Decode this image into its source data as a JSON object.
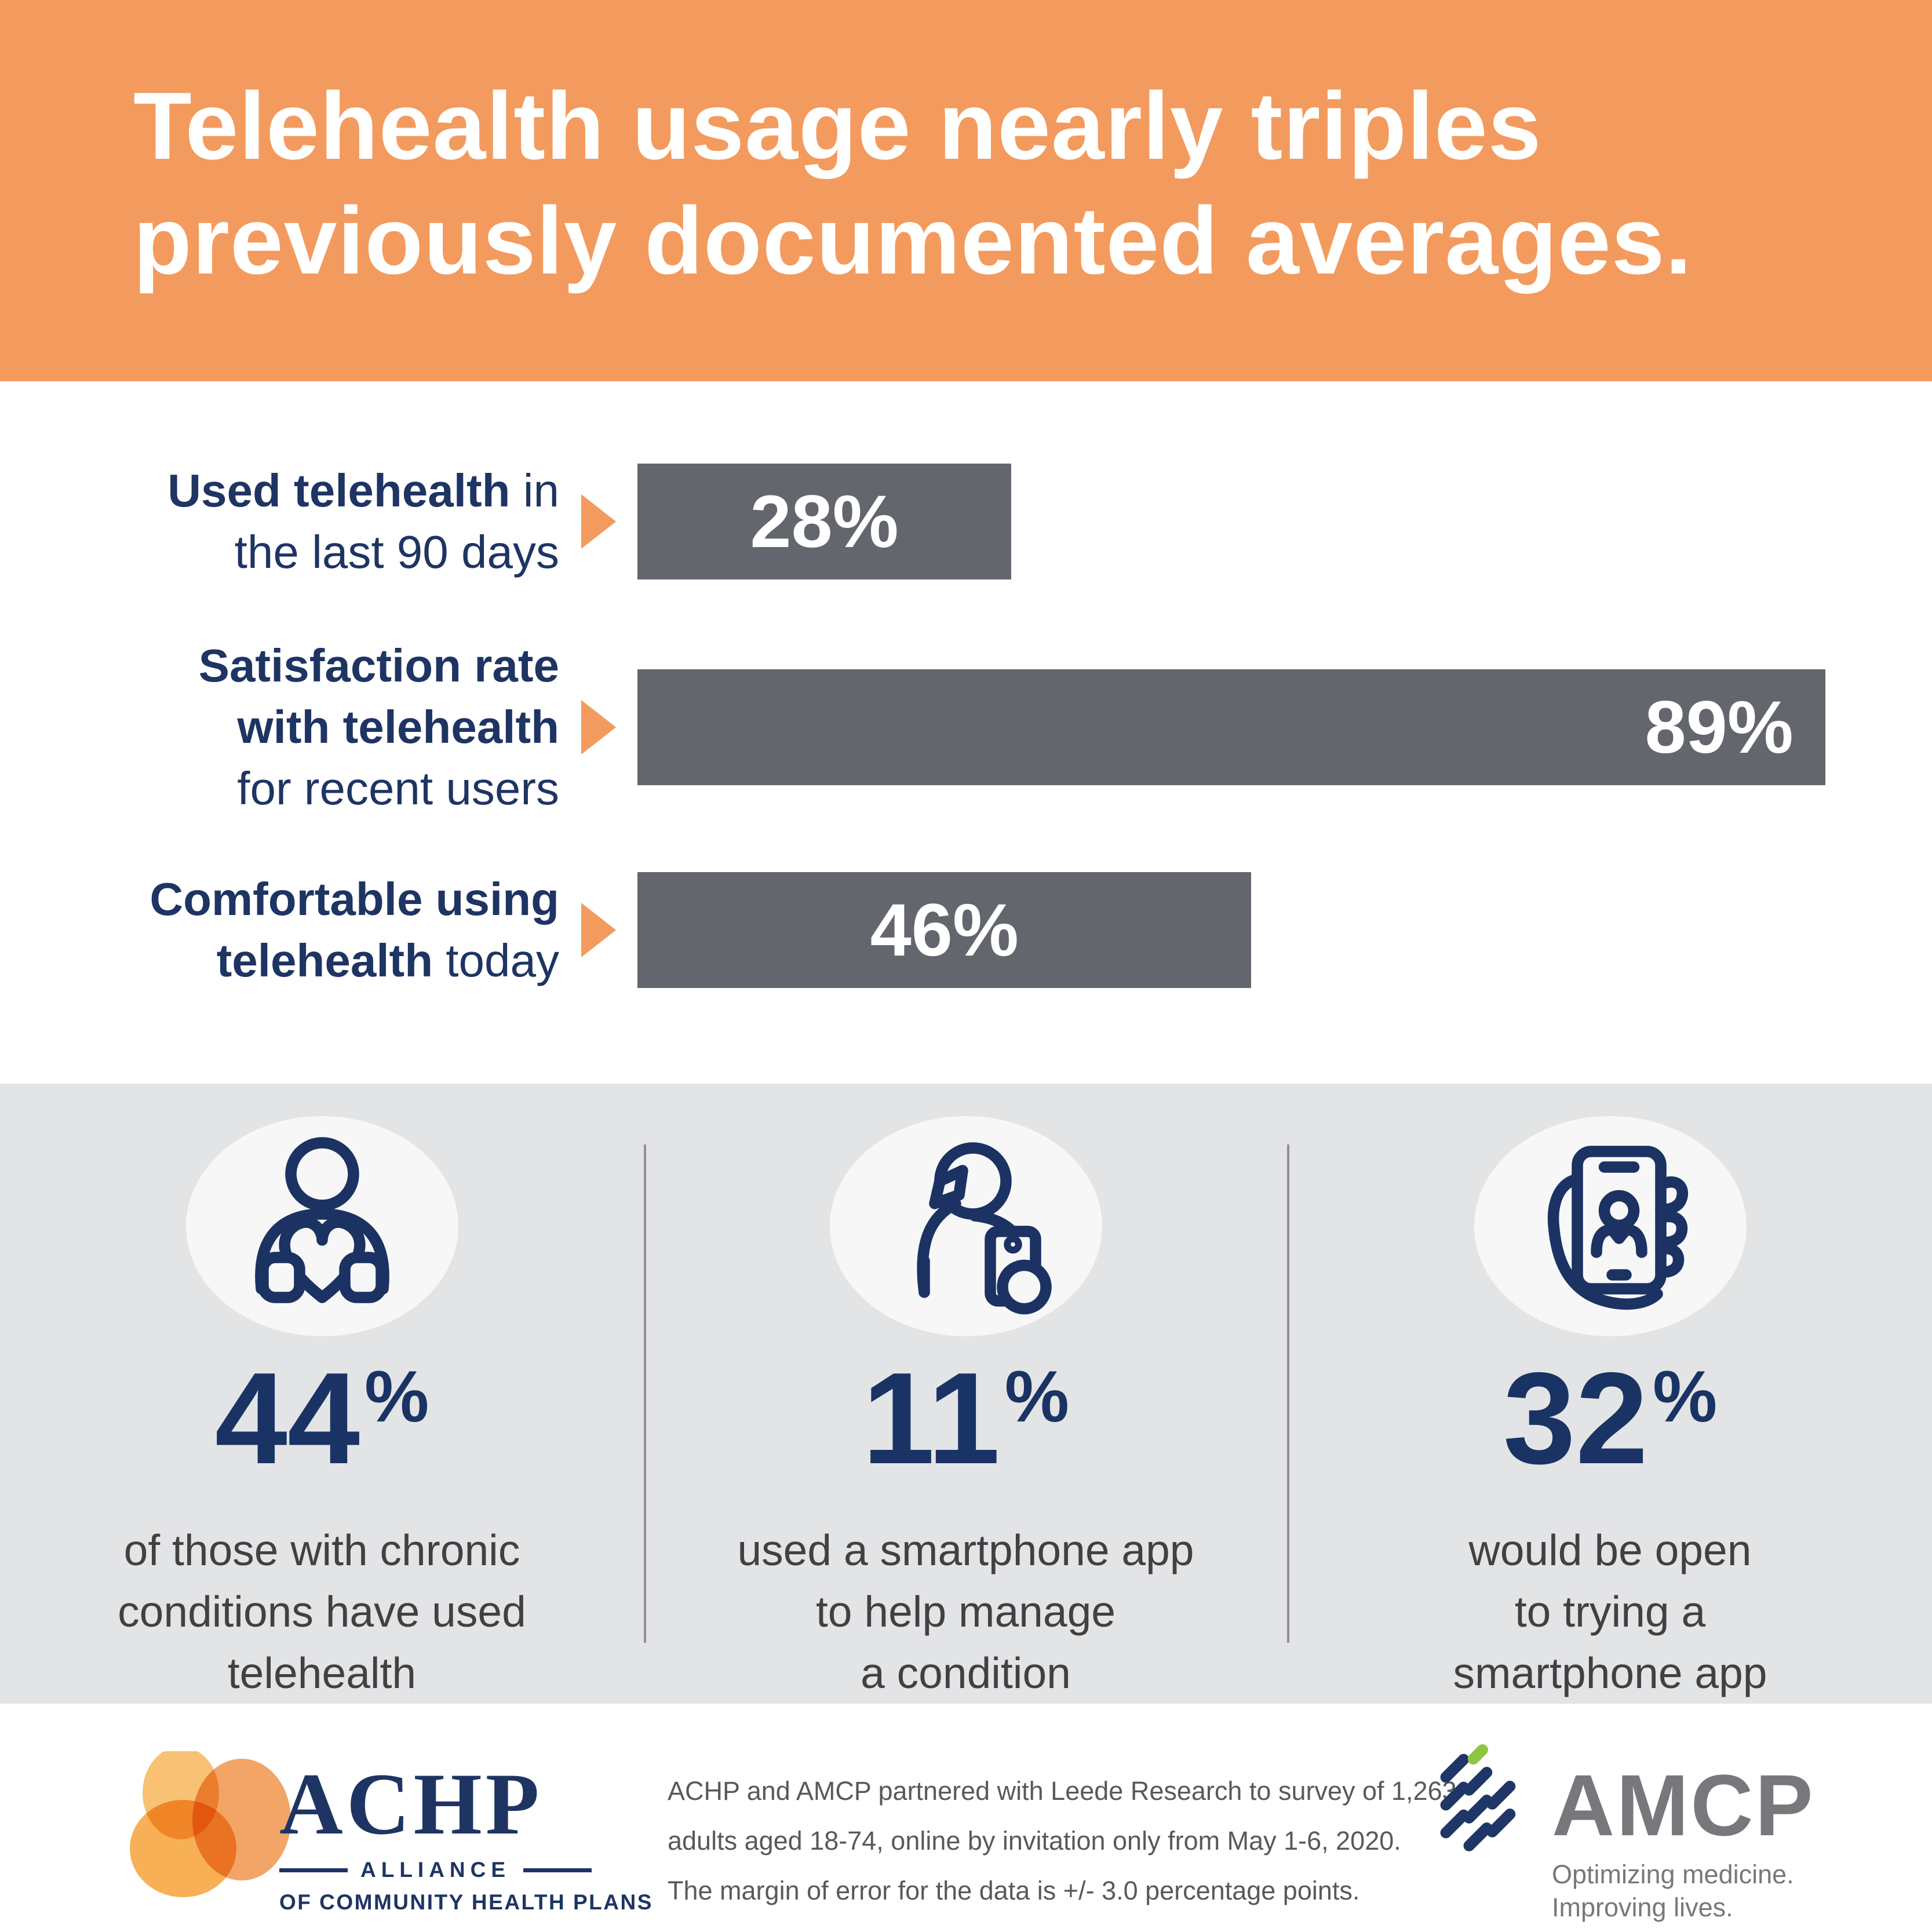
{
  "header": {
    "title_line1": "Telehealth usage nearly triples",
    "title_line2": "previously documented averages."
  },
  "chart_data": {
    "type": "bar",
    "orientation": "horizontal",
    "unit": "%",
    "xlim": [
      0,
      100
    ],
    "bar_color": "#63666C",
    "arrow_color": "#F39B5E",
    "bars": [
      {
        "value": 28,
        "value_label": "28%",
        "label_align": "center",
        "lines": [
          [
            {
              "t": "Used telehealth",
              "b": true
            },
            {
              "t": " in",
              "b": false
            }
          ],
          [
            {
              "t": "the last 90 days",
              "b": false
            }
          ]
        ]
      },
      {
        "value": 89,
        "value_label": "89%",
        "label_align": "right",
        "lines": [
          [
            {
              "t": "Satisfaction rate",
              "b": true
            }
          ],
          [
            {
              "t": "with telehealth",
              "b": true
            }
          ],
          [
            {
              "t": "for recent users",
              "b": false
            }
          ]
        ]
      },
      {
        "value": 46,
        "value_label": "46%",
        "label_align": "center",
        "lines": [
          [
            {
              "t": "Comfortable using",
              "b": true
            }
          ],
          [
            {
              "t": "telehealth",
              "b": true
            },
            {
              "t": " today",
              "b": false
            }
          ]
        ]
      }
    ]
  },
  "stats": [
    {
      "icon": "person-holding-heart-icon",
      "value": "44",
      "unit": "%",
      "description": "of those with chronic\nconditions have used\ntelehealth"
    },
    {
      "icon": "person-with-tissue-and-phone-icon",
      "value": "11",
      "unit": "%",
      "description": "used a smartphone app\nto help manage\na condition"
    },
    {
      "icon": "hand-holding-smartphone-icon",
      "value": "32",
      "unit": "%",
      "description": "would be open\nto trying a\nsmartphone app"
    }
  ],
  "footer": {
    "achp_logo": {
      "name": "ACHP",
      "sub1": "ALLIANCE",
      "sub2": "OF COMMUNITY HEALTH PLANS"
    },
    "note": "ACHP and AMCP partnered with Leede Research to survey of 1,263\nadults aged 18-74, online by invitation only from May 1-6, 2020.\nThe margin of error for the data is +/- 3.0 percentage points.",
    "amcp_logo": {
      "name": "AMCP",
      "tagline_line1": "Optimizing medicine.",
      "tagline_line2": "Improving lives."
    }
  },
  "colors": {
    "header_orange": "#F39B5E",
    "bar_gray": "#63666C",
    "navy": "#1E3463",
    "stat_navy": "#1A3365",
    "panel_gray": "#E3E4E5",
    "circle_bg": "#F7F7F8",
    "body_text": "#414042",
    "footer_text": "#58595B",
    "divider_gray": "#909094",
    "amcp_gray": "#77787B",
    "amcp_green": "#8DC63F",
    "achp_pale_orange": "#F8C173",
    "achp_orange": "#F0954B",
    "achp_gold": "#F6A843"
  }
}
